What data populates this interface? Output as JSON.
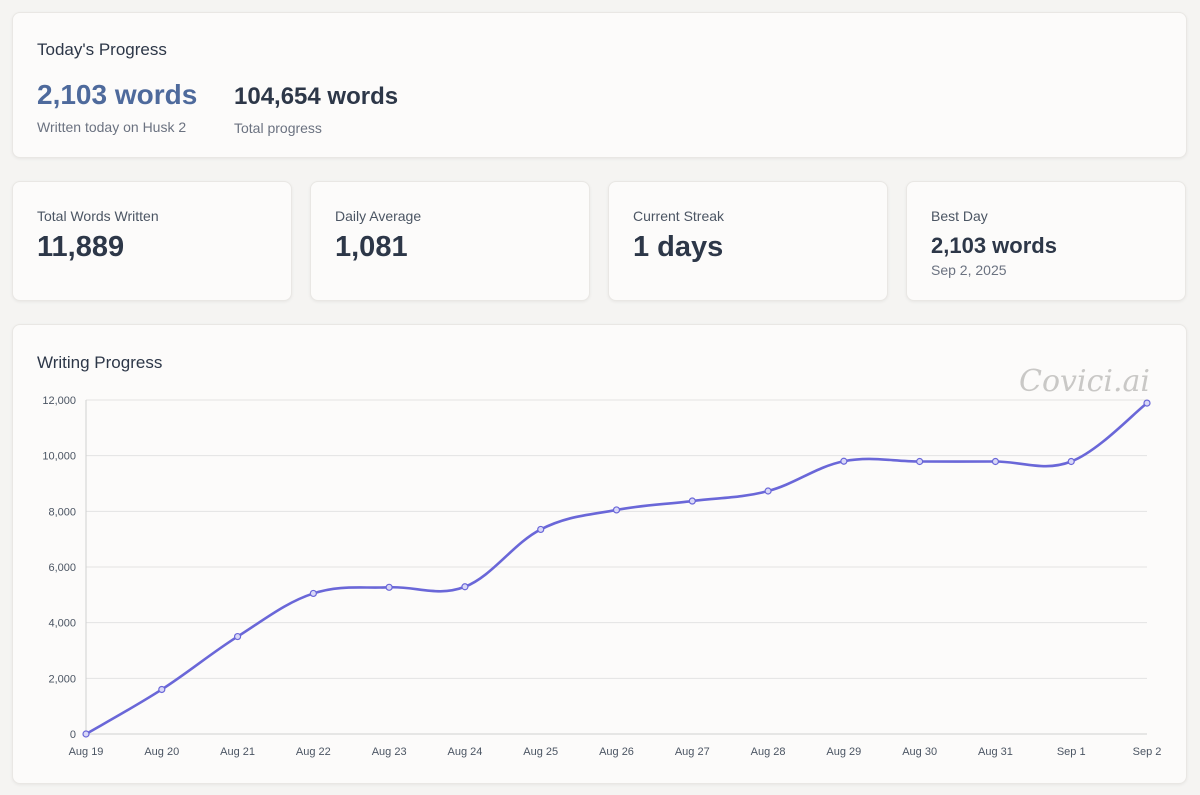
{
  "today": {
    "title": "Today's Progress",
    "words_value": "2,103 words",
    "words_sub": "Written today on Husk 2",
    "total_value": "104,654 words",
    "total_sub": "Total progress"
  },
  "stats": [
    {
      "label": "Total Words Written",
      "value": "11,889"
    },
    {
      "label": "Daily Average",
      "value": "1,081"
    },
    {
      "label": "Current Streak",
      "value": "1 days"
    },
    {
      "label": "Best Day",
      "value": "2,103 words",
      "date": "Sep 2, 2025"
    }
  ],
  "chart": {
    "title": "Writing Progress",
    "watermark": "Covici.ai"
  },
  "chart_data": {
    "type": "line",
    "categories": [
      "Aug 19",
      "Aug 20",
      "Aug 21",
      "Aug 22",
      "Aug 23",
      "Aug 24",
      "Aug 25",
      "Aug 26",
      "Aug 27",
      "Aug 28",
      "Aug 29",
      "Aug 30",
      "Aug 31",
      "Sep 1",
      "Sep 2"
    ],
    "series": [
      {
        "values": [
          0,
          1600,
          3500,
          5050,
          5270,
          5290,
          7350,
          8050,
          8370,
          8730,
          9800,
          9790,
          9790,
          9790,
          11889
        ]
      }
    ],
    "ylim": [
      0,
      12000
    ],
    "yticks": [
      0,
      2000,
      4000,
      6000,
      8000,
      10000,
      12000
    ],
    "ytick_labels": [
      "0",
      "2,000",
      "4,000",
      "6,000",
      "8,000",
      "10,000",
      "12,000"
    ],
    "grid": true,
    "line_color": "#6a67d8"
  }
}
